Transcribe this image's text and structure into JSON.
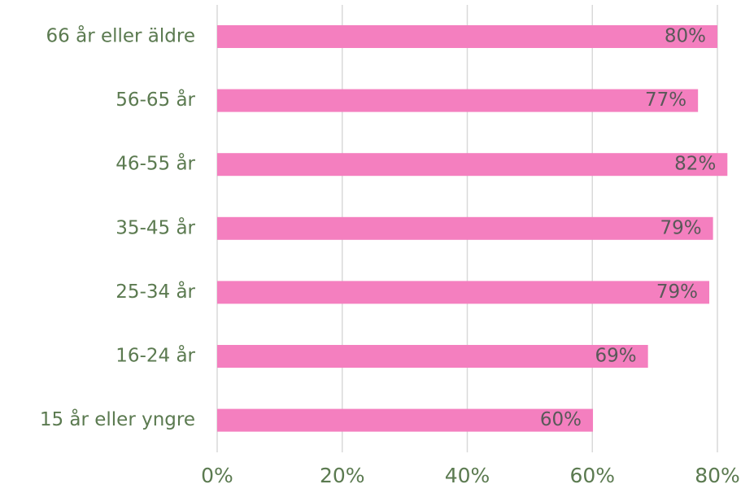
{
  "chart_data": {
    "type": "bar",
    "orientation": "horizontal",
    "categories": [
      "66 år eller äldre",
      "56-65 år",
      "46-55 år",
      "35-45 år",
      "25-34 år",
      "16-24 år",
      "15 år eller yngre"
    ],
    "values": [
      80,
      76.9,
      81.6,
      79.3,
      78.7,
      68.9,
      60.1
    ],
    "value_labels": [
      "80%",
      "77%",
      "82%",
      "79%",
      "79%",
      "69%",
      "60%"
    ],
    "color": "#f47fbf",
    "xlim": [
      0,
      80
    ],
    "xticks": [
      {
        "value": 0,
        "label": "0%"
      },
      {
        "value": 20,
        "label": "20%"
      },
      {
        "value": 40,
        "label": "40%"
      },
      {
        "value": 60,
        "label": "60%"
      },
      {
        "value": 80,
        "label": "80%"
      }
    ],
    "grid": true
  }
}
